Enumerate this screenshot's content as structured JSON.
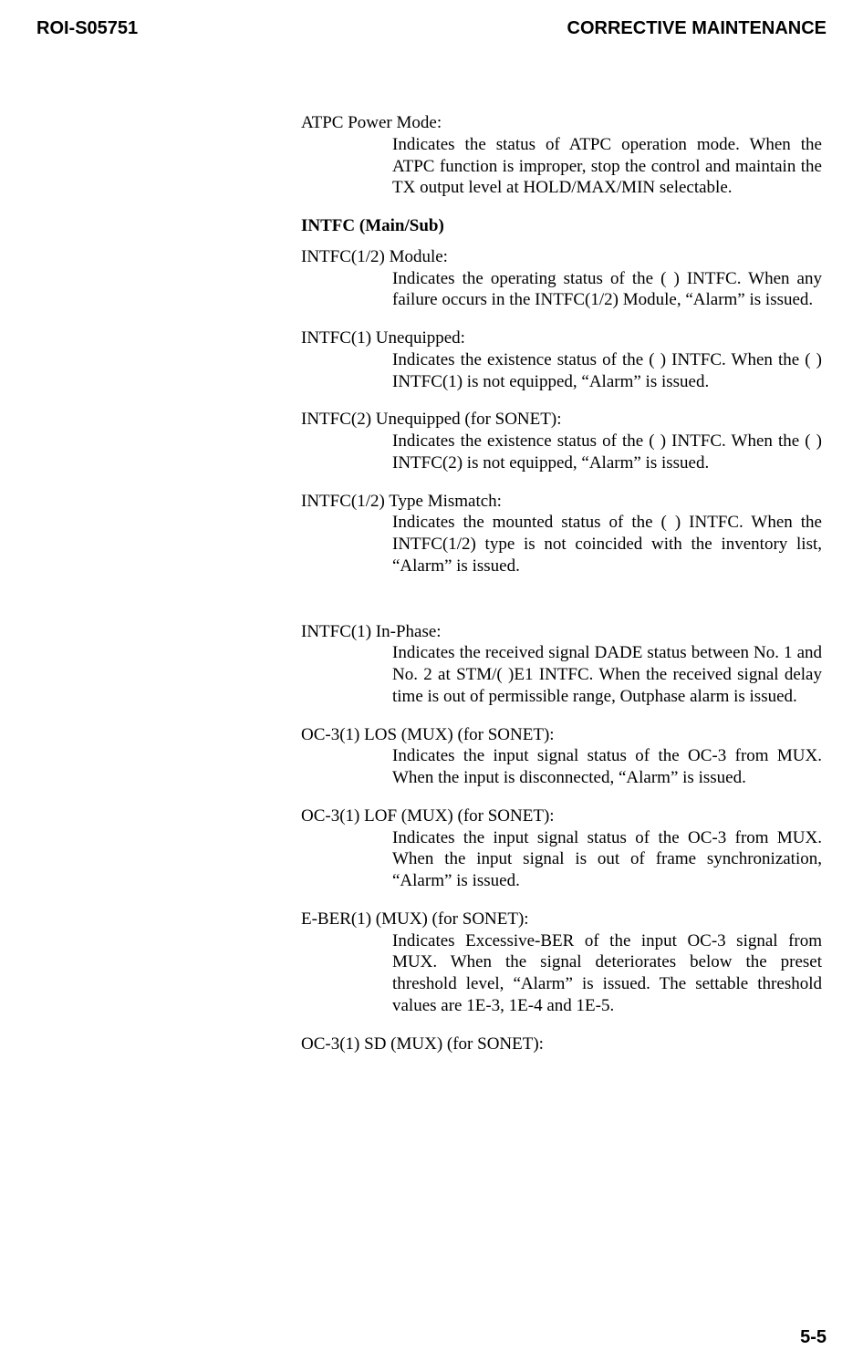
{
  "header": {
    "left": "ROI-S05751",
    "right": "CORRECTIVE MAINTENANCE"
  },
  "items": [
    {
      "term": "ATPC Power Mode:",
      "desc": "Indicates the status of ATPC operation mode. When the ATPC function is improper, stop the control and maintain the TX output level at HOLD/MAX/MIN selectable."
    },
    {
      "heading": "INTFC (Main/Sub)"
    },
    {
      "term": "INTFC(1/2) Module:",
      "desc": "Indicates the operating status of the ( ) INTFC. When any failure occurs in the INTFC(1/2) Module, “Alarm” is issued."
    },
    {
      "term": "INTFC(1) Unequipped:",
      "desc": "Indicates the existence status of the ( ) INTFC. When the ( ) INTFC(1) is not equipped, “Alarm” is issued."
    },
    {
      "term": "INTFC(2) Unequipped (for SONET):",
      "desc": "Indicates the existence status of the ( ) INTFC. When the ( ) INTFC(2) is not equipped, “Alarm” is issued."
    },
    {
      "term": "INTFC(1/2) Type Mismatch:",
      "desc": "Indicates the mounted status of the ( ) INTFC. When the INTFC(1/2) type is not coincided with the inventory list, “Alarm” is issued."
    },
    {
      "gap": true,
      "term": "INTFC(1) In-Phase:",
      "desc": "Indicates the received signal DADE status between No. 1 and No. 2 at STM/( )E1 INTFC. When the received signal delay time is out of permissible range, Outphase alarm is issued."
    },
    {
      "term": "OC-3(1) LOS (MUX) (for SONET):",
      "desc": "Indicates the input signal status of the OC-3 from MUX. When the input is disconnected, “Alarm” is issued."
    },
    {
      "term": "OC-3(1) LOF (MUX) (for SONET):",
      "desc": "Indicates the input signal status of the OC-3 from MUX. When the input signal is out of frame synchronization, “Alarm” is issued."
    },
    {
      "term": "E-BER(1) (MUX) (for SONET):",
      "desc": "Indicates Excessive-BER of the input OC-3 signal from MUX. When the signal deteriorates below the preset threshold level, “Alarm” is issued.  The settable threshold values are 1E-3, 1E-4 and 1E-5."
    },
    {
      "term": "OC-3(1) SD (MUX) (for SONET):"
    }
  ],
  "pagenum": "5-5"
}
